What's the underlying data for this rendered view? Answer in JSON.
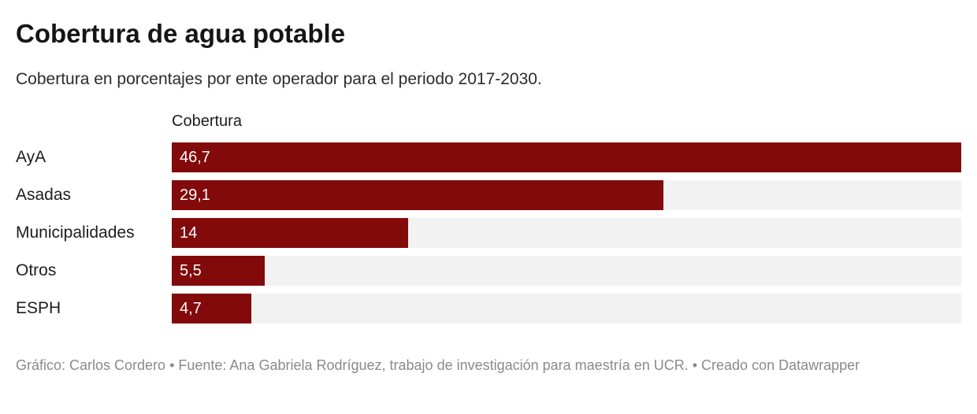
{
  "header": {
    "title": "Cobertura de agua potable",
    "subtitle": "Cobertura en porcentajes por ente operador para el periodo 2017-2030."
  },
  "chart_data": {
    "type": "bar",
    "orientation": "horizontal",
    "column_header": "Cobertura",
    "categories": [
      "AyA",
      "Asadas",
      "Municipalidades",
      "Otros",
      "ESPH"
    ],
    "values": [
      46.7,
      29.1,
      14,
      5.5,
      4.7
    ],
    "value_labels": [
      "46,7",
      "29,1",
      "14",
      "5,5",
      "4,7"
    ],
    "xlim": [
      0,
      46.7
    ],
    "grid": false,
    "legend": false,
    "colors": {
      "bar": "#830a0a",
      "track": "#f2f2f2",
      "value_text": "#ffffff"
    }
  },
  "footer": {
    "credit": "Gráfico: Carlos Cordero • Fuente: Ana Gabriela Rodríguez, trabajo de investigación para maestría en UCR. • Creado con Datawrapper"
  }
}
